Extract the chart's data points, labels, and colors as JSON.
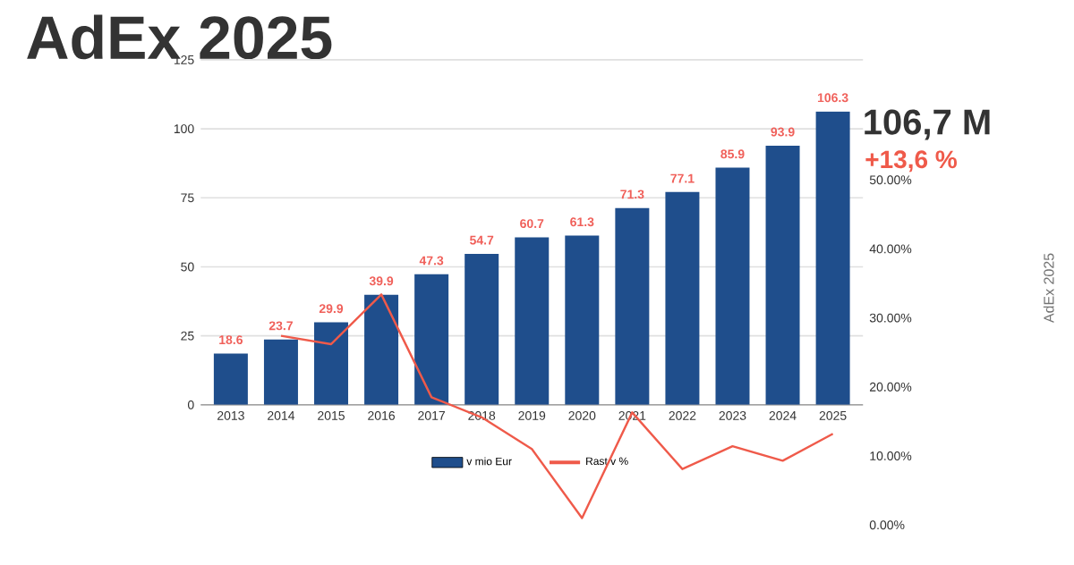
{
  "chart_data": {
    "type": "bar",
    "title": "AdEx 2025",
    "categories": [
      "2013",
      "2014",
      "2015",
      "2016",
      "2017",
      "2018",
      "2019",
      "2020",
      "2021",
      "2022",
      "2023",
      "2024",
      "2025"
    ],
    "series": [
      {
        "name": "v mio Eur",
        "color": "#1f4e8c",
        "values": [
          18.6,
          23.7,
          29.9,
          39.9,
          47.3,
          54.7,
          60.7,
          61.3,
          71.3,
          77.1,
          85.9,
          93.9,
          106.3
        ],
        "value_labels": [
          "18.6",
          "23.7",
          "29.9",
          "39.9",
          "47.3",
          "54.7",
          "60.7",
          "61.3",
          "71.3",
          "77.1",
          "85.9",
          "93.9",
          "106.3"
        ]
      },
      {
        "name": "Rast v %",
        "type": "line",
        "axis": "y2",
        "color": "#ef5a4a",
        "values": [
          null,
          27.4,
          26.2,
          33.4,
          18.5,
          15.6,
          11.0,
          1.0,
          16.3,
          8.1,
          11.4,
          9.3,
          13.2
        ]
      }
    ],
    "ylim": [
      0,
      125
    ],
    "yticks": [
      0,
      25,
      50,
      75,
      100,
      125
    ],
    "y2lim": [
      0,
      50
    ],
    "y2ticks": [
      {
        "value": 0,
        "label": "0.00%"
      },
      {
        "value": 10,
        "label": "10.00%"
      },
      {
        "value": 20,
        "label": "20.00%"
      },
      {
        "value": 30,
        "label": "30.00%"
      },
      {
        "value": 40,
        "label": "40.00%"
      },
      {
        "value": 50,
        "label": "50.00%"
      }
    ],
    "grid": "y",
    "legend": "bottom",
    "annotations": [
      "106,7 M",
      "+13,6 %",
      "AdEx 2025"
    ]
  }
}
